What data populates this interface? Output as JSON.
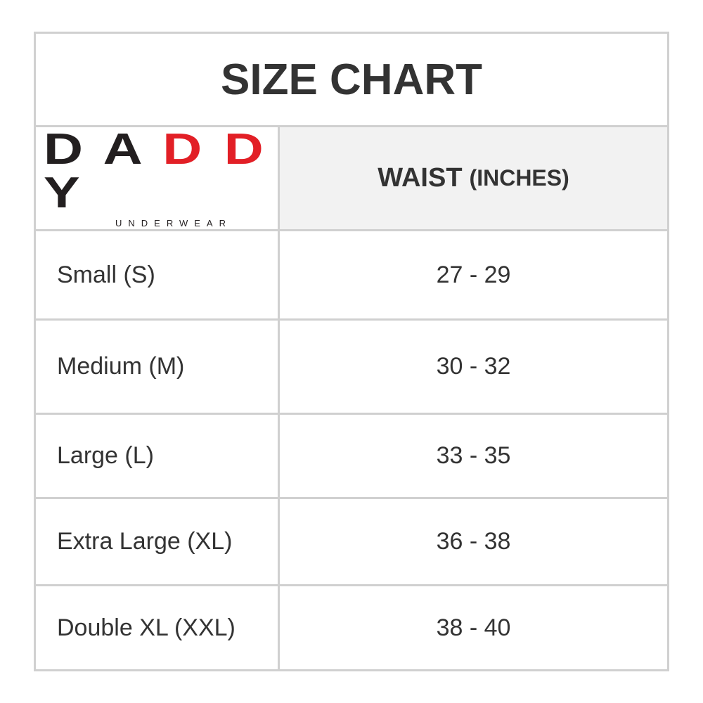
{
  "title": "SIZE CHART",
  "logo": {
    "text": "DADDY",
    "subtext": "UNDERWEAR",
    "brand_color": "#e21f26"
  },
  "header": {
    "column_main": "WAIST",
    "column_unit": "(INCHES)"
  },
  "rows": [
    {
      "size": "Small (S)",
      "waist": "27 - 29"
    },
    {
      "size": "Medium (M)",
      "waist": "30 - 32"
    },
    {
      "size": "Large (L)",
      "waist": "33 - 35"
    },
    {
      "size": "Extra Large (XL)",
      "waist": "36 - 38"
    },
    {
      "size": "Double XL (XXL)",
      "waist": "38 - 40"
    }
  ]
}
